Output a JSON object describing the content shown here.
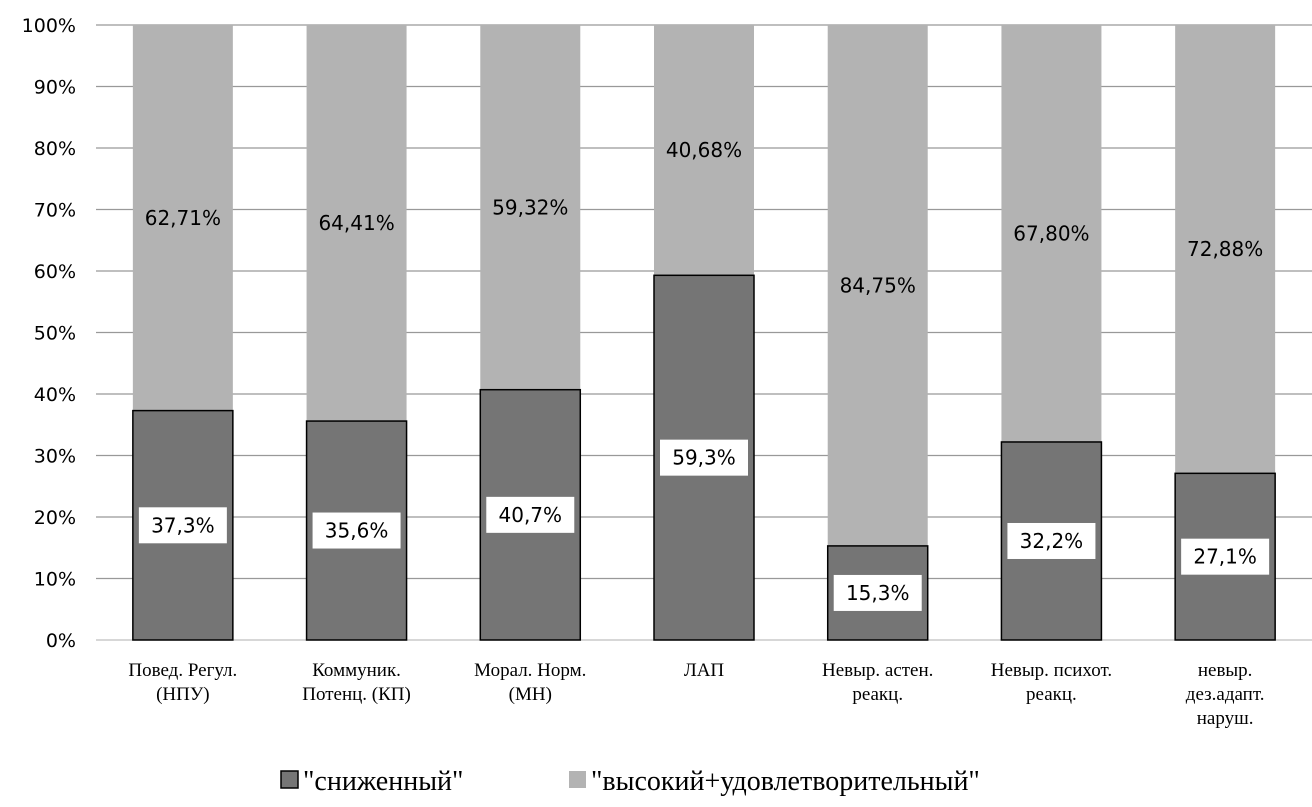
{
  "chart_data": {
    "type": "bar",
    "stacked": true,
    "percent_stacked": true,
    "categories": [
      [
        "Повед. Регул.",
        "(НПУ)"
      ],
      [
        "Коммуник.",
        "Потенц. (КП)"
      ],
      [
        "Морал. Норм.",
        "(МН)"
      ],
      [
        "ЛАП"
      ],
      [
        "Невыр. астен.",
        "реакц."
      ],
      [
        "Невыр. психот.",
        "реакц."
      ],
      [
        "невыр.",
        "дез.адапт.",
        "наруш."
      ]
    ],
    "series": [
      {
        "name": "\"сниженный\"",
        "color": "#757575",
        "values": [
          37.3,
          35.6,
          40.7,
          59.3,
          15.3,
          32.2,
          27.1
        ],
        "labels": [
          "37,3%",
          "35,6%",
          "40,7%",
          "59,3%",
          "15,3%",
          "32,2%",
          "27,1%"
        ]
      },
      {
        "name": "\"высокий+удовлетворительный\"",
        "color": "#b3b3b3",
        "values": [
          62.71,
          64.41,
          59.32,
          40.68,
          84.75,
          67.8,
          72.88
        ],
        "labels": [
          "62,71%",
          "64,41%",
          "59,32%",
          "40,68%",
          "84,75%",
          "67,80%",
          "72,88%"
        ]
      }
    ],
    "ylim": [
      0,
      100
    ],
    "yticks": [
      "0%",
      "10%",
      "20%",
      "30%",
      "40%",
      "50%",
      "60%",
      "70%",
      "80%",
      "90%",
      "100%"
    ],
    "grid": true,
    "legend_position": "bottom",
    "title": "",
    "xlabel": "",
    "ylabel": ""
  }
}
